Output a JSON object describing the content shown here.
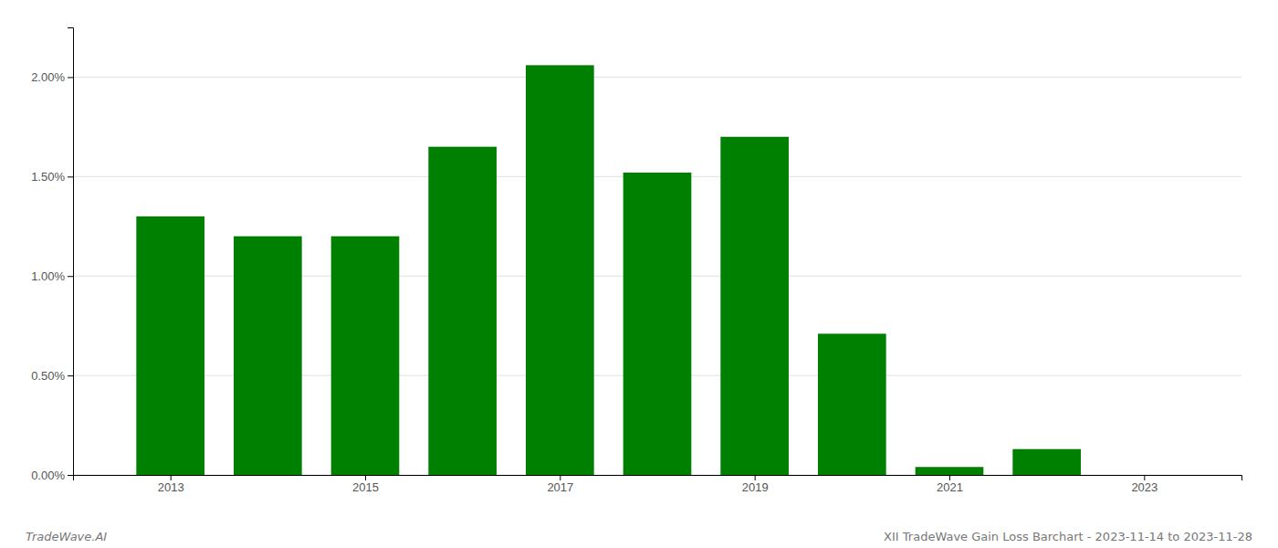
{
  "chart_data": {
    "type": "bar",
    "x": [
      2013,
      2014,
      2015,
      2016,
      2017,
      2018,
      2019,
      2020,
      2021,
      2022,
      2023
    ],
    "values": [
      0.013,
      0.012,
      0.012,
      0.0165,
      0.0206,
      0.0152,
      0.017,
      0.0071,
      0.0004,
      0.0013,
      0.0
    ],
    "color": "#008000",
    "xlim": [
      2012.0,
      2024.0
    ],
    "xticks": [
      2013,
      2015,
      2017,
      2019,
      2021,
      2023
    ],
    "ylim": [
      0.0,
      0.0225
    ],
    "yticks": [
      {
        "value": 0.0,
        "label": "0.00%"
      },
      {
        "value": 0.005,
        "label": "0.50%"
      },
      {
        "value": 0.01,
        "label": "1.00%"
      },
      {
        "value": 0.015,
        "label": "1.50%"
      },
      {
        "value": 0.02,
        "label": "2.00%"
      }
    ],
    "grid": true,
    "annotations": [
      "TradeWave.AI",
      "XII TradeWave Gain Loss Barchart - 2023-11-14 to 2023-11-28"
    ]
  }
}
